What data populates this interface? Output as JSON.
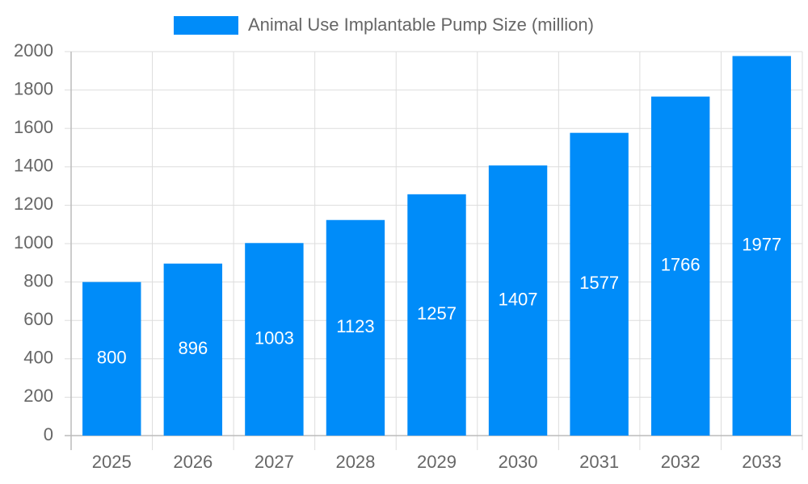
{
  "chart_data": {
    "type": "bar",
    "categories": [
      "2025",
      "2026",
      "2027",
      "2028",
      "2029",
      "2030",
      "2031",
      "2032",
      "2033"
    ],
    "series": [
      {
        "name": "Animal Use Implantable Pump Size (million)",
        "color": "#008cf9",
        "values": [
          800,
          896,
          1003,
          1123,
          1257,
          1407,
          1577,
          1766,
          1977
        ]
      }
    ],
    "ylim": [
      0,
      2000
    ],
    "yticks": [
      0,
      200,
      400,
      600,
      800,
      1000,
      1200,
      1400,
      1600,
      1800,
      2000
    ],
    "grid": true,
    "legend": "top"
  }
}
